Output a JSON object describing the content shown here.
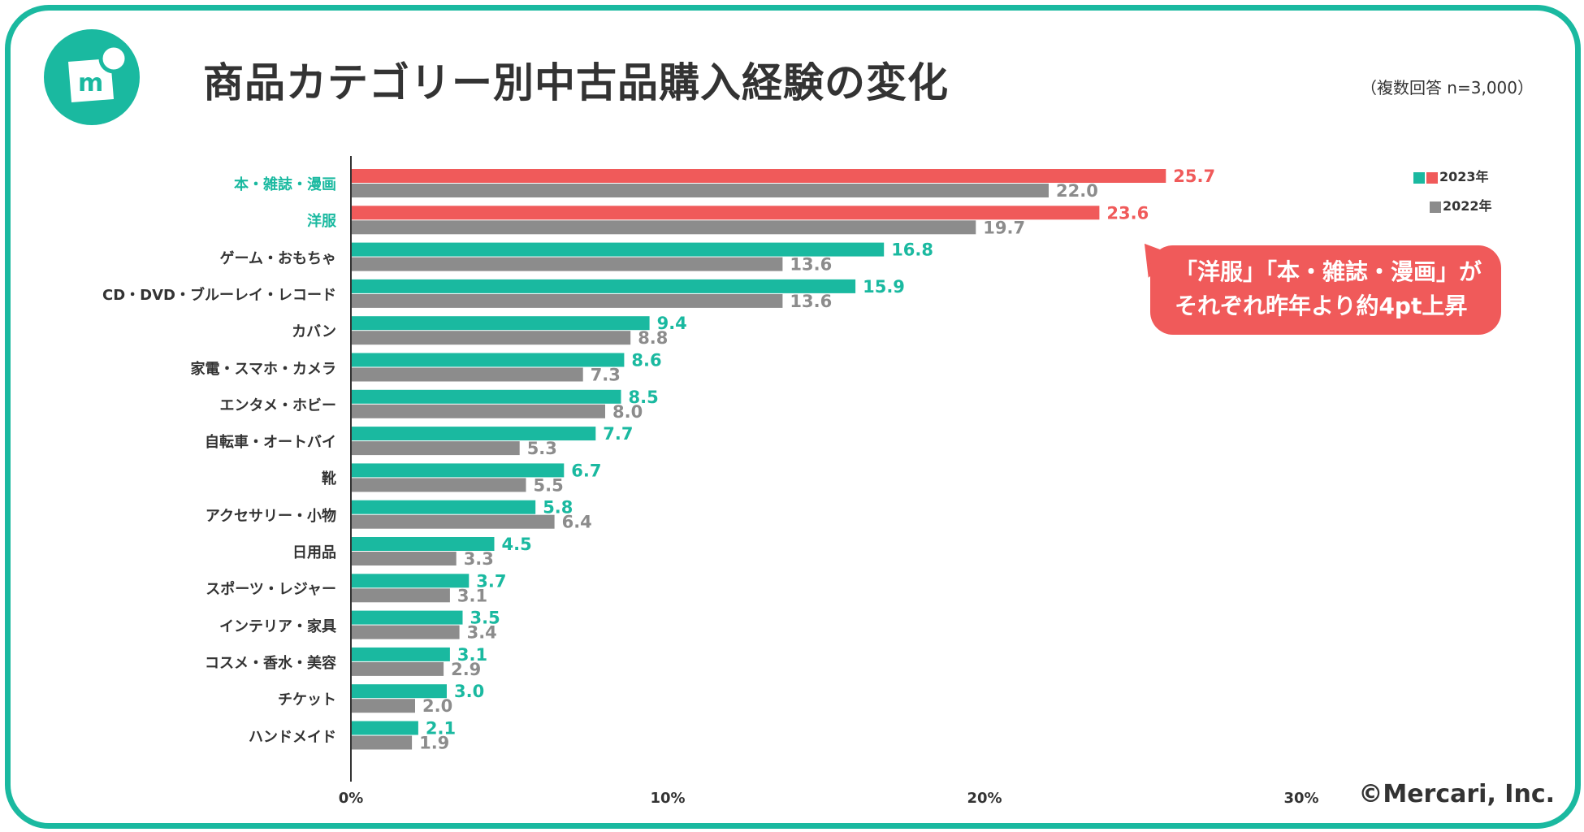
{
  "title": "商品カテゴリー別中古品購入経験の変化",
  "note": "（複数回答 n=3,000）",
  "callout": {
    "line1": "「洋服」「本・雑誌・漫画」が",
    "line2": "それぞれ昨年より約4pt上昇"
  },
  "credit": "©Mercari, Inc.",
  "colors": {
    "accent": "#1ab9a0",
    "highlight": "#f05a5a",
    "previous": "#8c8c8c"
  },
  "chart_data": {
    "type": "bar",
    "orientation": "horizontal",
    "categories": [
      "本・雑誌・漫画",
      "洋服",
      "ゲーム・おもちゃ",
      "CD・DVD・ブルーレイ・レコード",
      "カバン",
      "家電・スマホ・カメラ",
      "エンタメ・ホビー",
      "自転車・オートバイ",
      "靴",
      "アクセサリー・小物",
      "日用品",
      "スポーツ・レジャー",
      "インテリア・家具",
      "コスメ・香水・美容",
      "チケット",
      "ハンドメイド"
    ],
    "highlighted_categories": [
      "本・雑誌・漫画",
      "洋服"
    ],
    "series": [
      {
        "name": "2023年",
        "values": [
          25.7,
          23.6,
          16.8,
          15.9,
          9.4,
          8.6,
          8.5,
          7.7,
          6.7,
          5.8,
          4.5,
          3.7,
          3.5,
          3.1,
          3.0,
          2.1
        ]
      },
      {
        "name": "2022年",
        "values": [
          22.0,
          19.7,
          13.6,
          13.6,
          8.8,
          7.3,
          8.0,
          5.3,
          5.5,
          6.4,
          3.3,
          3.1,
          3.4,
          2.9,
          2.0,
          1.9
        ]
      }
    ],
    "xticks": [
      "0%",
      "10%",
      "20%",
      "30%"
    ],
    "xlim": [
      0,
      30
    ],
    "grid": false,
    "legend": "top-right"
  }
}
